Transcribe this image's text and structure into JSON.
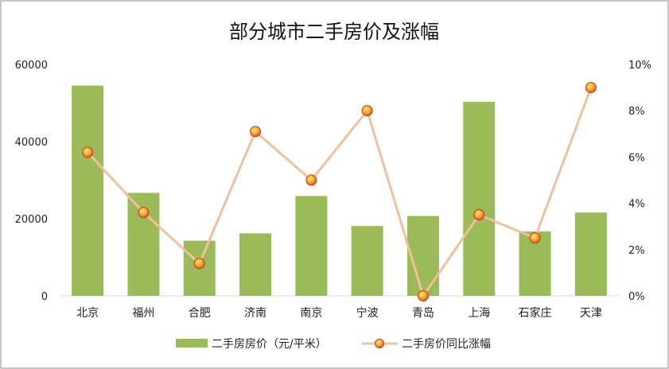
{
  "chart_data": {
    "type": "bar",
    "title": "部分城市二手房价及涨幅",
    "categories": [
      "北京",
      "福州",
      "合肥",
      "济南",
      "南京",
      "宁波",
      "青岛",
      "上海",
      "石家庄",
      "天津"
    ],
    "series": [
      {
        "name": "二手房房价（元/平米）",
        "type": "bar",
        "axis": "left",
        "color": "#9bbb59",
        "values": [
          54500,
          26700,
          14300,
          16200,
          25900,
          18100,
          20700,
          50300,
          16700,
          21600
        ]
      },
      {
        "name": "二手房价同比涨幅",
        "type": "line",
        "axis": "right",
        "color": "#f2c09a",
        "marker_color": "#e8a020",
        "values": [
          6.2,
          3.6,
          1.4,
          7.1,
          5.0,
          8.0,
          0.0,
          3.5,
          2.5,
          9.0
        ]
      }
    ],
    "y_left": {
      "min": 0,
      "max": 60000,
      "ticks": [
        0,
        20000,
        40000,
        60000
      ],
      "tick_labels": [
        "0",
        "20000",
        "40000",
        "60000"
      ]
    },
    "y_right": {
      "min": 0,
      "max": 10,
      "ticks": [
        0,
        2,
        4,
        6,
        8,
        10
      ],
      "tick_labels": [
        "0%",
        "2%",
        "4%",
        "6%",
        "8%",
        "10%"
      ]
    },
    "grid": false,
    "legend": "bottom"
  }
}
